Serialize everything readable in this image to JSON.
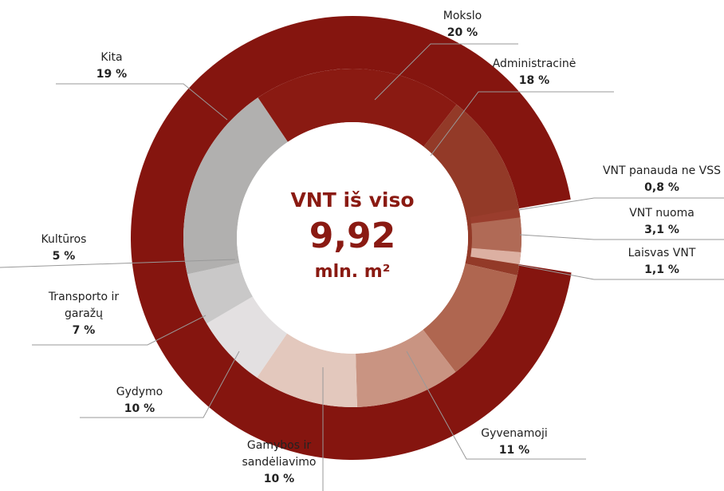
{
  "chart_data": {
    "type": "donut",
    "center_title": "VNT iš viso",
    "total": 9.92,
    "total_label": "9,92",
    "unit": "mln. m²",
    "categories": [
      "Mokslo",
      "Administracinė",
      "Gyvenamoji",
      "Gamybos ir sandėliavimo",
      "Gydymo",
      "Transporto ir garažų",
      "Kultūros",
      "Kita"
    ],
    "values": [
      20,
      18,
      11,
      10,
      10,
      7,
      5,
      19
    ],
    "value_labels": [
      "20 %",
      "18 %",
      "11 %",
      "10 %",
      "10 %",
      "7 %",
      "5 %",
      "19 %"
    ],
    "colors": [
      "#8a1a12",
      "#933a28",
      "#af6650",
      "#c99482",
      "#e3c8bd",
      "#e3e0e1",
      "#c9c8c8",
      "#b1b0af"
    ],
    "vnt_categories": [
      "VNT panauda ne VSS",
      "VNT nuoma",
      "Laisvas VNT"
    ],
    "vnt_values": [
      0.8,
      3.1,
      1.1
    ],
    "vnt_value_labels": [
      "0,8 %",
      "3,1 %",
      "1,1 %"
    ],
    "vnt_colors": [
      "#9a3d2d",
      "#b06a56",
      "#dcb0a2"
    ]
  }
}
